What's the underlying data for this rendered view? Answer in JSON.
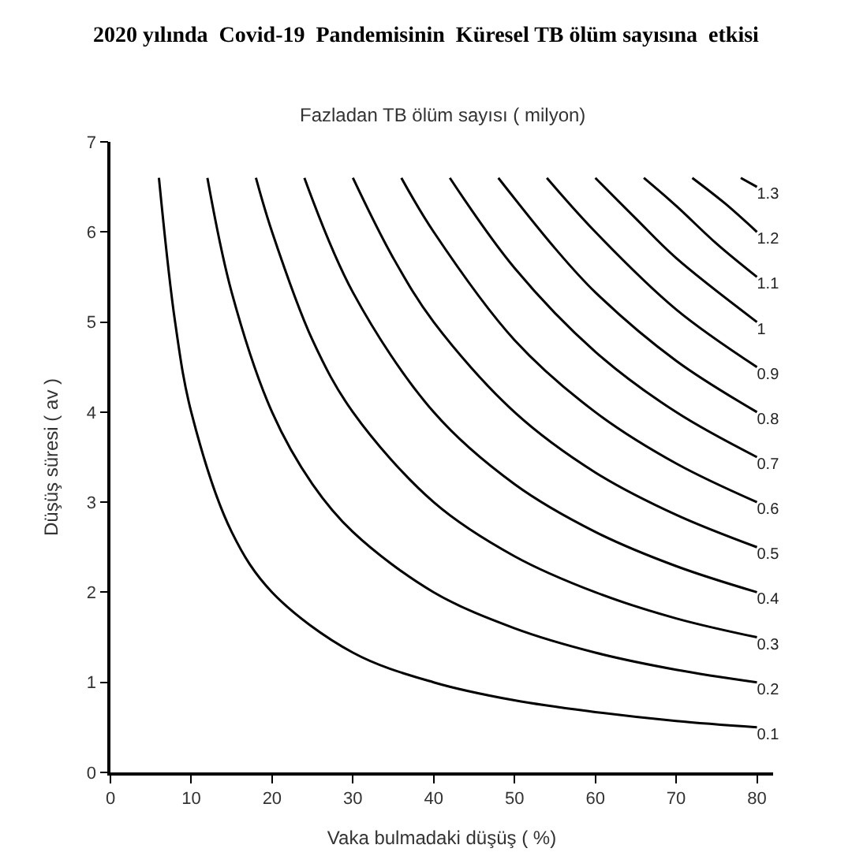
{
  "chart_data": {
    "type": "line",
    "title": "2020 yılında  Covid-19  Pandemisinin  Küresel TB ölüm sayısına  etkisi",
    "subtitle": "Fazladan TB ölüm sayısı ( milyon)",
    "xlabel": "Vaka bulmadaki düşüş ( %)",
    "ylabel": "Düşüş süresi ( av )",
    "xlim": [
      0,
      82
    ],
    "ylim": [
      0,
      7
    ],
    "xticks": [
      0,
      10,
      20,
      30,
      40,
      50,
      60,
      70,
      80
    ],
    "yticks": [
      0,
      1,
      2,
      3,
      4,
      5,
      6,
      7
    ],
    "legend": false,
    "marker": "none",
    "line_style": "solid",
    "series": [
      {
        "name": "0.1",
        "color": "#000000",
        "x": [
          6,
          8,
          10,
          15,
          20,
          30,
          40,
          50,
          60,
          70,
          80
        ],
        "values": [
          6.6,
          5,
          4,
          2.67,
          2,
          1.33,
          1,
          0.8,
          0.67,
          0.57,
          0.5
        ]
      },
      {
        "name": "0.2",
        "color": "#000000",
        "x": [
          12,
          15,
          20,
          25,
          30,
          40,
          50,
          60,
          70,
          80
        ],
        "values": [
          6.6,
          5.33,
          4,
          3.2,
          2.67,
          2,
          1.6,
          1.33,
          1.14,
          1
        ]
      },
      {
        "name": "0.3",
        "color": "#000000",
        "x": [
          18,
          20,
          25,
          30,
          40,
          50,
          60,
          70,
          80
        ],
        "values": [
          6.6,
          6,
          4.8,
          4,
          3,
          2.4,
          2,
          1.71,
          1.5
        ]
      },
      {
        "name": "0.4",
        "color": "#000000",
        "x": [
          24,
          30,
          40,
          50,
          60,
          70,
          80
        ],
        "values": [
          6.6,
          5.33,
          4,
          3.2,
          2.67,
          2.29,
          2
        ]
      },
      {
        "name": "0.5",
        "color": "#000000",
        "x": [
          30,
          35,
          40,
          50,
          60,
          70,
          80
        ],
        "values": [
          6.6,
          5.71,
          5,
          4,
          3.33,
          2.86,
          2.5
        ]
      },
      {
        "name": "0.6",
        "color": "#000000",
        "x": [
          36,
          40,
          50,
          60,
          70,
          80
        ],
        "values": [
          6.6,
          6,
          4.8,
          4,
          3.43,
          3
        ]
      },
      {
        "name": "0.7",
        "color": "#000000",
        "x": [
          42,
          50,
          60,
          70,
          80
        ],
        "values": [
          6.6,
          5.6,
          4.67,
          4,
          3.5
        ]
      },
      {
        "name": "0.8",
        "color": "#000000",
        "x": [
          48,
          55,
          60,
          70,
          80
        ],
        "values": [
          6.6,
          5.82,
          5.33,
          4.57,
          4
        ]
      },
      {
        "name": "0.9",
        "color": "#000000",
        "x": [
          54,
          60,
          70,
          80
        ],
        "values": [
          6.6,
          6,
          5.14,
          4.5
        ]
      },
      {
        "name": "1",
        "color": "#000000",
        "x": [
          60,
          65,
          70,
          80
        ],
        "values": [
          6.6,
          6.15,
          5.71,
          5
        ]
      },
      {
        "name": "1.1",
        "color": "#000000",
        "x": [
          66,
          70,
          75,
          80
        ],
        "values": [
          6.6,
          6.29,
          5.87,
          5.5
        ]
      },
      {
        "name": "1.2",
        "color": "#000000",
        "x": [
          72,
          76,
          80
        ],
        "values": [
          6.6,
          6.32,
          6
        ]
      },
      {
        "name": "1.3",
        "color": "#000000",
        "x": [
          78,
          80
        ],
        "values": [
          6.6,
          6.5
        ]
      }
    ]
  }
}
